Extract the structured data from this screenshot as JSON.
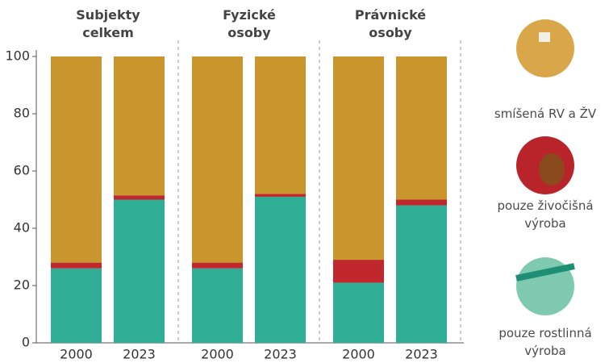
{
  "chart_data": {
    "type": "bar",
    "stacked": true,
    "panels": [
      {
        "title": "Subjekty celkem"
      },
      {
        "title": "Fyzické osoby"
      },
      {
        "title": "Právnické osoby"
      }
    ],
    "categories": [
      "2000",
      "2023",
      "2000",
      "2023",
      "2000",
      "2023"
    ],
    "series": [
      {
        "name": "pouze rostlinná výroba",
        "color": "#2fae95",
        "values": [
          26,
          50,
          26,
          51,
          21,
          48
        ]
      },
      {
        "name": "pouze živočišná výroba",
        "color": "#c0282d",
        "values": [
          2,
          1.5,
          2,
          1,
          8,
          2
        ]
      },
      {
        "name": "smíšená RV a ŽV",
        "color": "#c9962e",
        "values": [
          72,
          48.5,
          72,
          48,
          71,
          50
        ]
      }
    ],
    "ylim": [
      0,
      100
    ],
    "yticks": [
      0,
      20,
      40,
      60,
      80,
      100
    ]
  }
}
